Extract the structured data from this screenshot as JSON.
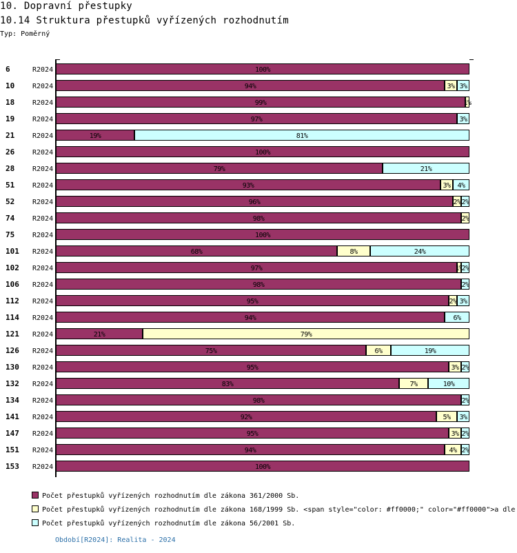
{
  "header": {
    "title": "10. Dopravní přestupky",
    "subtitle": "10.14 Struktura přestupků vyřízených rozhodnutím",
    "type_label": "Typ: Poměrný"
  },
  "colors": {
    "s1": "#993366",
    "s2": "#ffffcc",
    "s3": "#ccffff"
  },
  "chart_data": {
    "type": "bar",
    "orientation": "horizontal",
    "stacked": true,
    "normalized": true,
    "xlim": [
      0,
      100
    ],
    "categories": [
      "6",
      "10",
      "18",
      "19",
      "21",
      "26",
      "28",
      "51",
      "52",
      "74",
      "75",
      "101",
      "102",
      "106",
      "112",
      "114",
      "121",
      "126",
      "130",
      "132",
      "134",
      "141",
      "147",
      "151",
      "153"
    ],
    "period_label": "R2024",
    "series": [
      {
        "name": "Počet přestupků vyřízených rozhodnutím dle zákona 361/2000 Sb.",
        "color": "#993366",
        "values": [
          100,
          94,
          99,
          97,
          19,
          100,
          79,
          93,
          96,
          98,
          100,
          68,
          97,
          98,
          95,
          94,
          21,
          75,
          95,
          83,
          98,
          92,
          95,
          94,
          100
        ]
      },
      {
        "name": "Počet přestupků vyřízených rozhodnutím dle zákona 168/1999 Sb. <span style=\"color: #ff0000;\" color=\"#ff0000\">a dle",
        "color": "#ffffcc",
        "values": [
          0,
          3,
          1,
          0,
          0,
          0,
          0,
          3,
          2,
          2,
          0,
          8,
          1,
          0,
          2,
          0,
          79,
          6,
          3,
          7,
          0,
          5,
          3,
          4,
          0
        ]
      },
      {
        "name": "Počet přestupků vyřízených rozhodnutím dle zákona 56/2001 Sb.",
        "color": "#ccffff",
        "values": [
          0,
          3,
          0,
          3,
          81,
          0,
          21,
          4,
          2,
          0,
          0,
          24,
          2,
          2,
          3,
          6,
          0,
          19,
          2,
          10,
          2,
          3,
          2,
          2,
          0
        ]
      }
    ]
  },
  "legend": [
    "Počet přestupků vyřízených rozhodnutím dle zákona 361/2000 Sb.",
    "Počet přestupků vyřízených rozhodnutím dle zákona 168/1999 Sb. <span style=\"color: #ff0000;\" color=\"#ff0000\">a dle",
    "Počet přestupků vyřízených rozhodnutím dle zákona 56/2001 Sb."
  ],
  "footer": {
    "period": "Období[R2024]: Realita - 2024"
  }
}
